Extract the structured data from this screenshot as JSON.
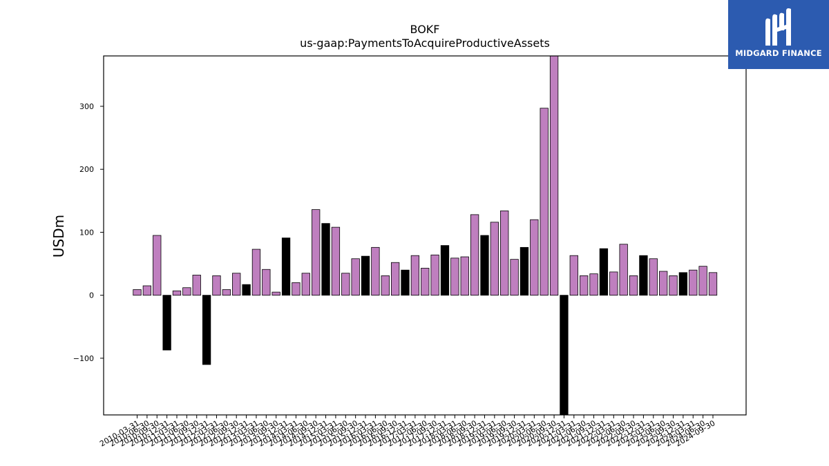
{
  "brand": {
    "name": "MIDGARD FINANCE",
    "bg_color": "#2c5bb0"
  },
  "chart_data": {
    "type": "bar",
    "title": "BOKF",
    "subtitle": "us-gaap:PaymentsToAcquireProductiveAssets",
    "xlabel": "",
    "ylabel": "USDm",
    "ylim": [
      -190,
      380
    ],
    "yticks": [
      -100,
      0,
      100,
      200,
      300
    ],
    "grid": false,
    "colors": {
      "default": "#bf7fbf",
      "q4": "#000000"
    },
    "categories": [
      "2010-03-31",
      "2010-06-30",
      "2010-09-30",
      "2010-12-31",
      "2011-03-31",
      "2011-06-30",
      "2011-09-30",
      "2011-12-31",
      "2012-03-31",
      "2012-06-30",
      "2012-09-30",
      "2012-12-31",
      "2013-03-31",
      "2013-06-30",
      "2013-09-30",
      "2013-12-31",
      "2014-03-31",
      "2014-06-30",
      "2014-09-30",
      "2014-12-31",
      "2015-03-31",
      "2015-06-30",
      "2015-09-30",
      "2015-12-31",
      "2016-03-31",
      "2016-06-30",
      "2016-09-30",
      "2016-12-31",
      "2017-03-31",
      "2017-06-30",
      "2017-09-30",
      "2017-12-31",
      "2018-03-31",
      "2018-06-30",
      "2018-09-30",
      "2018-12-31",
      "2019-03-31",
      "2019-06-30",
      "2019-09-30",
      "2019-12-31",
      "2020-03-31",
      "2020-06-30",
      "2020-09-30",
      "2020-12-31",
      "2021-03-31",
      "2021-06-30",
      "2021-09-30",
      "2021-12-31",
      "2022-03-31",
      "2022-06-30",
      "2022-09-30",
      "2022-12-31",
      "2023-03-31",
      "2023-06-30",
      "2023-09-30",
      "2023-12-31",
      "2024-03-31",
      "2024-06-30",
      "2024-09-30"
    ],
    "values": [
      9,
      15,
      95,
      -87,
      7,
      12,
      32,
      -110,
      31,
      9,
      35,
      17,
      73,
      41,
      5,
      91,
      20,
      35,
      136,
      114,
      108,
      35,
      58,
      62,
      76,
      31,
      52,
      40,
      63,
      43,
      64,
      79,
      59,
      61,
      128,
      95,
      116,
      134,
      57,
      76,
      120,
      297,
      380,
      -190,
      63,
      31,
      34,
      74,
      37,
      81,
      31,
      63,
      58,
      38,
      31,
      36,
      40,
      46,
      36
    ],
    "highlight": [
      false,
      false,
      false,
      true,
      false,
      false,
      false,
      true,
      false,
      false,
      false,
      true,
      false,
      false,
      false,
      true,
      false,
      false,
      false,
      true,
      false,
      false,
      false,
      true,
      false,
      false,
      false,
      true,
      false,
      false,
      false,
      true,
      false,
      false,
      false,
      true,
      false,
      false,
      false,
      true,
      false,
      false,
      false,
      true,
      false,
      false,
      false,
      true,
      false,
      false,
      false,
      true,
      false,
      false,
      false,
      true,
      false,
      false,
      false
    ],
    "x_tick_labels": [
      "2010-03-31",
      "2010-06-30",
      "2010-09-30",
      "2010-12-31",
      "2011-03-31",
      "2011-06-30",
      "2011-09-30",
      "2011-12-31",
      "2012-03-31",
      "2012-06-30",
      "2012-09-30",
      "2012-12-31",
      "2013-03-31",
      "2013-06-30",
      "2013-09-30",
      "2013-12-31",
      "2014-03-31",
      "2014-06-30",
      "2014-09-30",
      "2014-12-31",
      "2015-03-31",
      "2015-06-30",
      "2015-09-30",
      "2015-12-31",
      "2016-03-31",
      "2016-06-30",
      "2016-09-30",
      "2016-12-31",
      "2017-03-31",
      "2017-06-30",
      "2017-09-30",
      "2017-12-31",
      "2018-03-31",
      "2018-06-30",
      "2018-09-30",
      "2018-12-31",
      "2019-03-31",
      "2019-06-30",
      "2019-09-30",
      "2019-12-31",
      "2020-03-31",
      "2020-06-30",
      "2020-09-30",
      "2020-12-31",
      "2021-03-31",
      "2021-06-30",
      "2021-09-30",
      "2021-12-31",
      "2022-03-31",
      "2022-06-30",
      "2022-09-30",
      "2022-12-31",
      "2023-03-31",
      "2023-06-30",
      "2023-09-30",
      "2023-12-31",
      "2024-03-31",
      "2024-06-30",
      "2024-09-30"
    ]
  }
}
